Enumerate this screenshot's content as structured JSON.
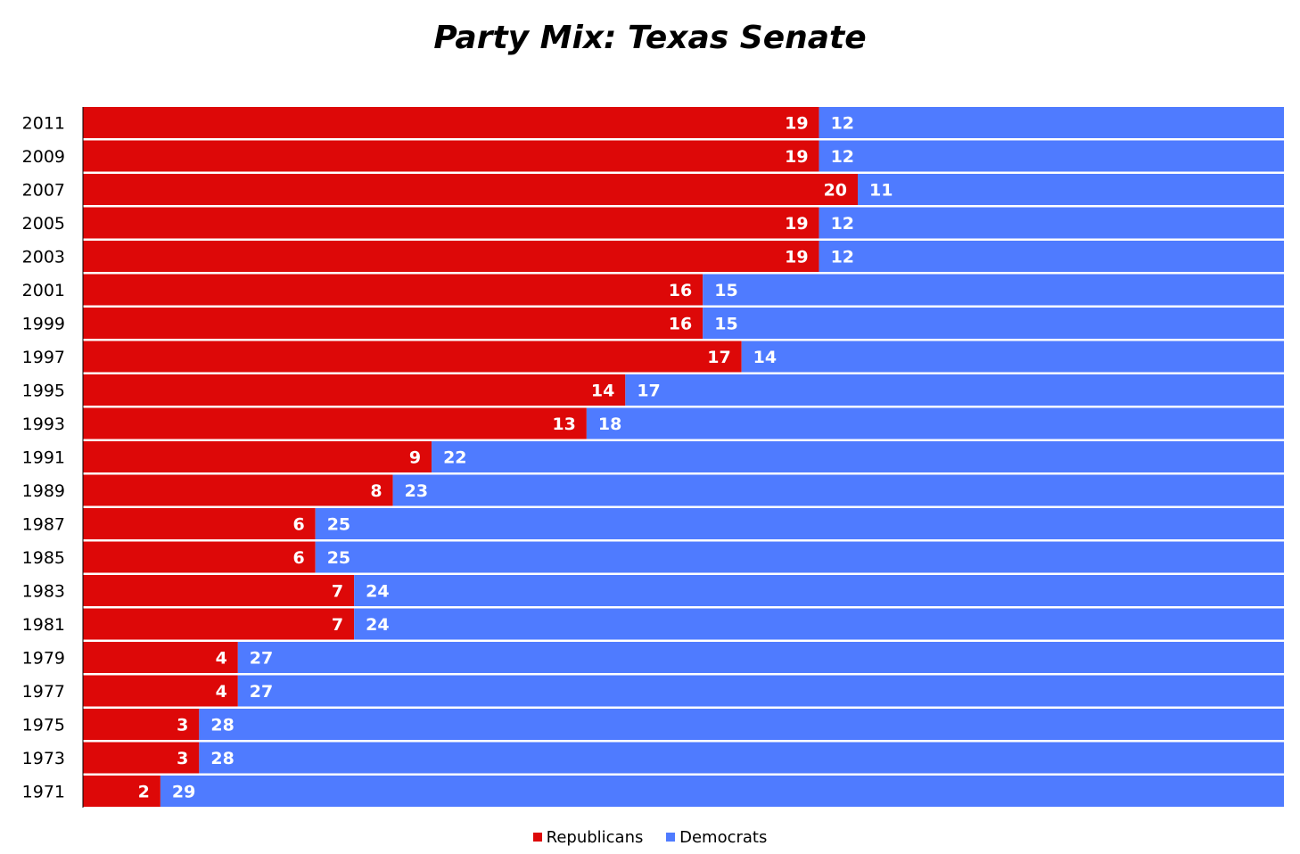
{
  "chart_data": {
    "type": "bar",
    "orientation": "horizontal",
    "stacked": true,
    "title": "Party Mix: Texas Senate",
    "xlabel": "",
    "ylabel": "",
    "categories": [
      "2011",
      "2009",
      "2007",
      "2005",
      "2003",
      "2001",
      "1999",
      "1997",
      "1995",
      "1993",
      "1991",
      "1989",
      "1987",
      "1985",
      "1983",
      "1981",
      "1979",
      "1977",
      "1975",
      "1973",
      "1971"
    ],
    "series": [
      {
        "name": "Republicans",
        "color": "#dd0808",
        "values": [
          19,
          19,
          20,
          19,
          19,
          16,
          16,
          17,
          14,
          13,
          9,
          8,
          6,
          6,
          7,
          7,
          4,
          4,
          3,
          3,
          2
        ]
      },
      {
        "name": "Democrats",
        "color": "#4f7bff",
        "values": [
          12,
          12,
          11,
          12,
          12,
          15,
          15,
          14,
          17,
          18,
          22,
          23,
          25,
          25,
          24,
          24,
          27,
          27,
          28,
          28,
          29
        ]
      }
    ],
    "xlim": [
      0,
      31
    ],
    "grid": false,
    "data_labels": true,
    "legend_position": "bottom"
  }
}
